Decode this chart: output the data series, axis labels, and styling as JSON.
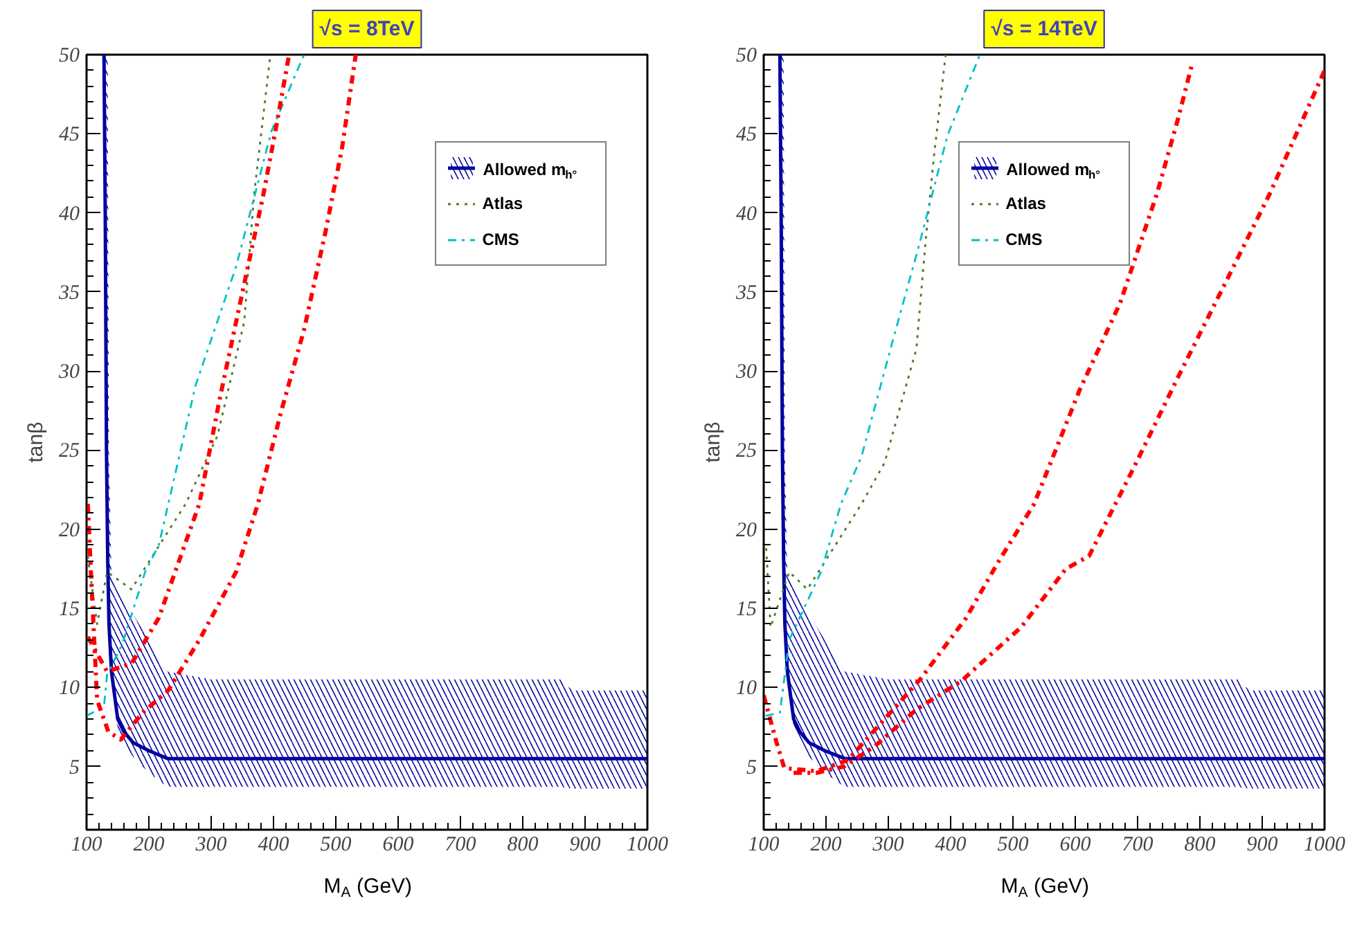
{
  "chart_data": [
    {
      "type": "line",
      "title": "√s = 8TeV",
      "xlabel": "M$_{A}$ (GeV)",
      "ylabel": "tanβ",
      "xlim": [
        100,
        1000
      ],
      "ylim": [
        1,
        50
      ],
      "xticks": [
        100,
        200,
        300,
        400,
        500,
        600,
        700,
        800,
        900,
        1000
      ],
      "yticks": [
        5,
        10,
        15,
        20,
        25,
        30,
        35,
        40,
        45,
        50
      ],
      "grid": false,
      "legend": "top right",
      "series": [
        {
          "name": "Allowed m$_{h°}$",
          "color": "#0000a0",
          "line_style": "solid",
          "x": [
            128,
            130,
            132,
            134,
            136,
            140,
            150,
            160,
            175,
            200,
            230,
            300,
            500,
            860,
            880,
            1000
          ],
          "values": [
            50,
            40,
            25,
            18,
            14,
            11,
            8,
            7.2,
            6.5,
            6,
            5.5,
            5.5,
            5.5,
            5.5,
            5.5,
            5.5
          ],
          "lower": [
            50,
            40,
            25,
            18,
            14,
            11,
            7.4,
            6.4,
            5.6,
            4.6,
            3.7,
            3.7,
            3.7,
            3.7,
            3.6,
            3.6
          ],
          "upper": [
            50,
            50,
            50,
            50,
            25,
            17,
            16.3,
            15.7,
            14.6,
            13,
            11,
            10.5,
            10.5,
            10.5,
            9.8,
            9.8
          ]
        },
        {
          "name": "Atlas",
          "color": "#4d7a2a",
          "line_style": "dotted",
          "x": [
            100,
            117,
            133,
            172,
            259,
            310,
            353,
            369,
            395
          ],
          "values": [
            18.8,
            14,
            17.3,
            16.2,
            21.6,
            25.9,
            33.1,
            41.2,
            50
          ]
        },
        {
          "name": "CMS",
          "color": "#00c0c8",
          "line_style": "dashed",
          "x": [
            100,
            128,
            133,
            157,
            194,
            216,
            275,
            340,
            397,
            449
          ],
          "values": [
            8.2,
            8.8,
            10.8,
            12.7,
            17.3,
            19,
            29.1,
            36.6,
            45.2,
            50
          ]
        },
        {
          "color": "#ff0000",
          "line_style": "dashed",
          "x": [
            102,
            133,
            172,
            216,
            281,
            314,
            353,
            384,
            406,
            425
          ],
          "values": [
            13.2,
            11,
            11.5,
            14.4,
            21.6,
            28.3,
            35.5,
            41.2,
            45.8,
            50
          ]
        },
        {
          "color": "#ff0000",
          "line_style": "dashed",
          "x": [
            102,
            107,
            117,
            135,
            155,
            190,
            231,
            281,
            340,
            375,
            412,
            449,
            484,
            510,
            532
          ],
          "values": [
            21.6,
            17.3,
            9.2,
            7.2,
            6.7,
            8.4,
            9.8,
            13,
            17.3,
            21.6,
            27.4,
            32.6,
            38.9,
            44.1,
            50
          ]
        }
      ]
    },
    {
      "type": "line",
      "title": "√s = 14TeV",
      "xlabel": "M$_{A}$ (GeV)",
      "ylabel": "tanβ",
      "xlim": [
        100,
        1000
      ],
      "ylim": [
        1,
        50
      ],
      "xticks": [
        100,
        200,
        300,
        400,
        500,
        600,
        700,
        800,
        900,
        1000
      ],
      "yticks": [
        5,
        10,
        15,
        20,
        25,
        30,
        35,
        40,
        45,
        50
      ],
      "grid": false,
      "legend": "top",
      "series": [
        {
          "name": "Allowed m$_{h°}$",
          "color": "#0000a0",
          "line_style": "solid",
          "x": [
            126,
            128,
            130,
            132,
            134,
            138,
            148,
            158,
            173,
            198,
            230,
            300,
            500,
            860,
            880,
            1000
          ],
          "values": [
            50,
            40,
            25,
            18,
            14,
            11,
            8,
            7.2,
            6.5,
            6,
            5.5,
            5.5,
            5.5,
            5.5,
            5.5,
            5.5
          ],
          "lower": [
            50,
            40,
            25,
            18,
            14,
            11,
            7.4,
            6.4,
            5.6,
            4.6,
            3.7,
            3.7,
            3.7,
            3.7,
            3.6,
            3.6
          ],
          "upper": [
            50,
            50,
            50,
            50,
            25,
            17,
            16.3,
            15.7,
            14.6,
            13,
            11,
            10.5,
            10.5,
            10.5,
            9.8,
            9.8
          ]
        },
        {
          "name": "Atlas",
          "color": "#4d7a2a",
          "line_style": "dotted",
          "x": [
            104,
            111,
            141,
            170,
            257,
            294,
            345,
            360,
            373,
            392
          ],
          "values": [
            18.8,
            13.8,
            17.3,
            16.2,
            21.6,
            24.2,
            31.4,
            38.3,
            43.5,
            50
          ]
        },
        {
          "name": "CMS",
          "color": "#00c0c8",
          "line_style": "dashed",
          "x": [
            103,
            126,
            141,
            192,
            224,
            257,
            307,
            351,
            395,
            447
          ],
          "values": [
            8.2,
            8.4,
            13,
            17.3,
            21.6,
            24.6,
            31.9,
            38.2,
            44.9,
            50
          ]
        },
        {
          "color": "#ff0000",
          "line_style": "dashed",
          "x": [
            100,
            120,
            133,
            185,
            235,
            294,
            351,
            425,
            476,
            534,
            607,
            672,
            731,
            766,
            788
          ],
          "values": [
            9.5,
            6.6,
            4.9,
            4.7,
            5.4,
            8,
            10.5,
            14.4,
            17.9,
            21.6,
            28.8,
            34.3,
            41.2,
            46.1,
            49.5
          ]
        },
        {
          "color": "#ff0000",
          "line_style": "dashed",
          "x": [
            148,
            185,
            229,
            279,
            345,
            417,
            513,
            585,
            622,
            694,
            766,
            840,
            912,
            1000
          ],
          "values": [
            4.6,
            4.6,
            5,
            6.3,
            8.6,
            10.4,
            13.8,
            17.5,
            18.3,
            23.9,
            29.7,
            35.5,
            41.2,
            49
          ]
        }
      ]
    }
  ]
}
